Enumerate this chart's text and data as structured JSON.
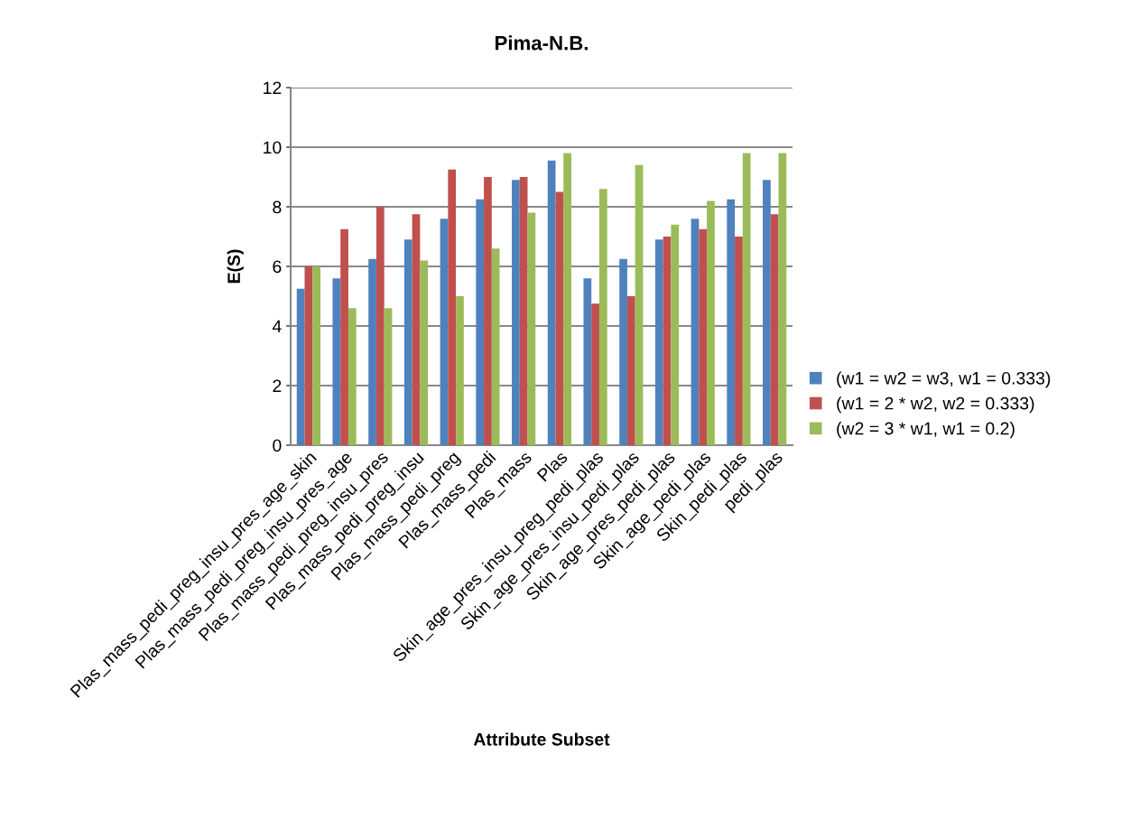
{
  "chart_data": {
    "type": "bar",
    "title": "Pima-N.B.",
    "xlabel": "Attribute Subset",
    "ylabel": "E(S)",
    "categories": [
      "Plas_mass_pedi_preg_insu_pres_age_skin",
      "Plas_mass_pedi_preg_insu_pres_age",
      "Plas_mass_pedi_preg_insu_pres",
      "Plas_mass_pedi_preg_insu",
      "Plas_mass_pedi_preg",
      "Plas_mass_pedi",
      "Plas_mass",
      "Plas",
      "Skin_age_pres_insu_preg_pedi_plas",
      "Skin_age_pres_insu_pedi_plas",
      "Skin_age_pres_pedi_plas",
      "Skin_age_pedi_plas",
      "Skin_pedi_plas",
      "pedi_plas"
    ],
    "series": [
      {
        "name": "(w1 = w2 = w3, w1 = 0.333)",
        "color": "#4f81bd",
        "values": [
          5.25,
          5.6,
          6.25,
          6.9,
          7.6,
          8.25,
          8.9,
          9.55,
          5.6,
          6.25,
          6.9,
          7.6,
          8.25,
          8.9
        ]
      },
      {
        "name": "(w1 = 2 * w2, w2 = 0.333)",
        "color": "#c0504d",
        "values": [
          6,
          7.25,
          8,
          7.75,
          9.25,
          9,
          9,
          8.5,
          4.75,
          5,
          7,
          7.25,
          7,
          7.75
        ]
      },
      {
        "name": "(w2 = 3 * w1, w1 = 0.2)",
        "color": "#9bbb59",
        "values": [
          6,
          4.6,
          4.6,
          6.2,
          5,
          6.6,
          7.8,
          9.8,
          8.6,
          9.4,
          7.4,
          8.2,
          9.8,
          9.8
        ]
      }
    ],
    "ylim": [
      0,
      12
    ],
    "yticks": [
      0,
      2,
      4,
      6,
      8,
      10,
      12
    ],
    "grid": "y",
    "legend": "right"
  }
}
